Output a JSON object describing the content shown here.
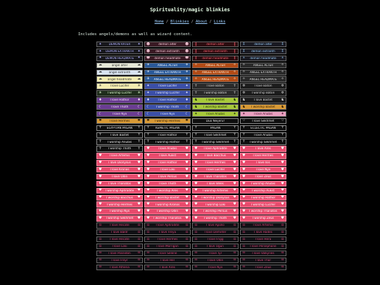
{
  "page": {
    "title": "Spirituality/magic blinkies",
    "intro": "Includes angels/demons as well as wizard content."
  },
  "nav": {
    "links": [
      "Home",
      "Blinkies",
      "About",
      "Links"
    ],
    "separator": "/"
  },
  "blinkies": [
    {
      "text": "DEMON RATER",
      "style": "dk",
      "icon_l": "✦",
      "icon_r": "✦"
    },
    {
      "text": "demon alter",
      "style": "br",
      "icon_l": "☻",
      "icon_r": "☻"
    },
    {
      "text": "demon alter",
      "style": "red",
      "icon_l": "‖",
      "icon_r": "‖"
    },
    {
      "text": "demon alter",
      "style": "dk2",
      "icon_l": "⁑",
      "icon_r": "⁑"
    },
    {
      "text": "DEMON EXTRANTH",
      "style": "dk",
      "icon_l": "✦",
      "icon_r": "✦"
    },
    {
      "text": "demon extranth",
      "style": "br",
      "icon_l": "☻",
      "icon_r": "☻"
    },
    {
      "text": "demon extranth",
      "style": "red",
      "icon_l": "‖",
      "icon_r": "‖"
    },
    {
      "text": "demon extranth",
      "style": "dk2",
      "icon_l": "⁑",
      "icon_r": "⁑"
    },
    {
      "text": "DEMON HEADMATE",
      "style": "dk",
      "icon_l": "✦",
      "icon_r": "✦"
    },
    {
      "text": "demon headmate",
      "style": "br",
      "icon_l": "☻",
      "icon_r": "☻"
    },
    {
      "text": "demon headmate",
      "style": "red",
      "icon_l": "‖",
      "icon_r": "‖"
    },
    {
      "text": "demon headmate",
      "style": "dk2",
      "icon_l": "⁑",
      "icon_r": "⁑"
    },
    {
      "text": "angel alter",
      "style": "pale",
      "icon_l": "☁",
      "icon_r": "☁"
    },
    {
      "text": "ANGEL ALTER",
      "style": "blu",
      "icon_l": "✈",
      "icon_r": "✈"
    },
    {
      "text": "ANGEL ALTER",
      "style": "org",
      "icon_l": "✧",
      "icon_r": "✧"
    },
    {
      "text": "ANGEL ALTER",
      "style": "grb",
      "icon_l": "✧",
      "icon_r": "✧"
    },
    {
      "text": "angel extranth",
      "style": "pal2",
      "icon_l": "☁",
      "icon_r": "☁"
    },
    {
      "text": "ANGEL EXTRANTH",
      "style": "blu",
      "icon_l": "✈",
      "icon_r": "✈"
    },
    {
      "text": "ANGEL EXTRANTH",
      "style": "org",
      "icon_l": "✧",
      "icon_r": "✧"
    },
    {
      "text": "ANGEL EXTRANTH",
      "style": "grb",
      "icon_l": "✧",
      "icon_r": "✧"
    },
    {
      "text": "angel headmate",
      "style": "yel",
      "icon_l": "☁",
      "icon_r": "☁"
    },
    {
      "text": "ANGEL HEADMATE",
      "style": "blu",
      "icon_l": "✈",
      "icon_r": "✈"
    },
    {
      "text": "ANGEL HEADMATE",
      "style": "org",
      "icon_l": "✧",
      "icon_r": "✧"
    },
    {
      "text": "ANGEL HEADMATE",
      "style": "grb",
      "icon_l": "✧",
      "icon_r": "✧"
    },
    {
      "text": "I love Lucifer",
      "style": "yel",
      "icon_l": "☀",
      "icon_r": "☀"
    },
    {
      "text": "I love Lucifer",
      "style": "blv",
      "icon_l": "✦",
      "icon_r": "✦"
    },
    {
      "text": "I love Baton",
      "style": "grb",
      "icon_l": "☥",
      "icon_r": "☥"
    },
    {
      "text": "I love Baton",
      "style": "gry",
      "icon_l": "✲",
      "icon_r": "✲"
    },
    {
      "text": "I worship Lucifer",
      "style": "grn",
      "icon_l": "☀",
      "icon_r": "☀"
    },
    {
      "text": "I worship Lucifer",
      "style": "blv",
      "icon_l": "✦",
      "icon_r": "✦"
    },
    {
      "text": "I worship Baton",
      "style": "grb",
      "icon_l": "☥",
      "icon_r": "☥"
    },
    {
      "text": "I worship Baton",
      "style": "gry",
      "icon_l": "✲",
      "icon_r": "✲"
    },
    {
      "text": "I love Hathor",
      "style": "pur",
      "icon_l": "♦",
      "icon_r": "♦"
    },
    {
      "text": "I love Hathor",
      "style": "blv",
      "icon_l": "♦",
      "icon_r": "♦"
    },
    {
      "text": "I love Bastet",
      "style": "lime",
      "icon_l": "♞",
      "icon_r": "♞"
    },
    {
      "text": "I love Bastet",
      "style": "gry",
      "icon_l": "♞",
      "icon_r": "♞"
    },
    {
      "text": "I love Thoth",
      "style": "pur",
      "icon_l": "☾",
      "icon_r": "☾"
    },
    {
      "text": "I worship Thoth",
      "style": "blv",
      "icon_l": "☾",
      "icon_r": "☾"
    },
    {
      "text": "I worship Bastet",
      "style": "lime",
      "icon_l": "♞",
      "icon_r": "♞"
    },
    {
      "text": "I worship Bastet",
      "style": "amb",
      "icon_l": "♞",
      "icon_r": "♞"
    },
    {
      "text": "I love Nyx",
      "style": "pur",
      "icon_l": "☾",
      "icon_r": "☾"
    },
    {
      "text": "I love Nyx",
      "style": "blv",
      "icon_l": "☾",
      "icon_r": "☾"
    },
    {
      "text": "I love Anubis",
      "style": "lime",
      "icon_l": "✦",
      "icon_r": "✦"
    },
    {
      "text": "I love Anubis",
      "style": "pnk",
      "icon_l": "✦",
      "icon_r": "✦"
    },
    {
      "text": "I love Hermes",
      "style": "amb",
      "icon_l": "✺",
      "icon_r": "✺"
    },
    {
      "text": "I worship Hermes",
      "style": "amb",
      "icon_l": "✺",
      "icon_r": "✺"
    },
    {
      "text": "Duo Neijeru!",
      "style": "blk",
      "icon_l": "",
      "icon_r": ""
    },
    {
      "text": "I love Sekhmet",
      "style": "blk",
      "icon_l": "♢",
      "icon_r": "♢"
    },
    {
      "text": "EGYPTIAN PAGAN",
      "style": "blk",
      "icon_l": "☥",
      "icon_r": "☥"
    },
    {
      "text": "KEMETIC PAGAN",
      "style": "blk",
      "icon_l": "☥",
      "icon_r": "☥"
    },
    {
      "text": "PAGAN",
      "style": "blk",
      "icon_l": "☥",
      "icon_r": "☥"
    },
    {
      "text": "ECLECTIC PAGAN",
      "style": "blk",
      "icon_l": "☥",
      "icon_r": "☥"
    },
    {
      "text": "I love Bastet",
      "style": "blk",
      "icon_l": "☥",
      "icon_r": "☥"
    },
    {
      "text": "I love Hathor",
      "style": "blk",
      "icon_l": "☥",
      "icon_r": "☥"
    },
    {
      "text": "I love Sekhmet",
      "style": "blk",
      "icon_l": "☥",
      "icon_r": "☥"
    },
    {
      "text": "I love Anubis",
      "style": "blk",
      "icon_l": "☥",
      "icon_r": "☥"
    },
    {
      "text": "I worship Anubis",
      "style": "blk",
      "icon_l": "☥",
      "icon_r": "☥"
    },
    {
      "text": "I worship Hathor",
      "style": "blk",
      "icon_l": "☥",
      "icon_r": "☥"
    },
    {
      "text": "I worship Sekhmet",
      "style": "blk",
      "icon_l": "☥",
      "icon_r": "☥"
    },
    {
      "text": "I worship Sekhmet",
      "style": "blk",
      "icon_l": "☥",
      "icon_r": "☥"
    },
    {
      "text": "I worship Thoth",
      "style": "blk",
      "icon_l": "☥",
      "icon_r": "☥"
    },
    {
      "text": "I love Anubis",
      "style": "rose",
      "icon_l": "♥",
      "icon_r": "♥"
    },
    {
      "text": "I love Aphrodite",
      "style": "rose",
      "icon_l": "♥",
      "icon_r": "♥"
    },
    {
      "text": "I love Ares",
      "style": "rose",
      "icon_l": "♥",
      "icon_r": "♥"
    },
    {
      "text": "I love Artemis",
      "style": "rose",
      "icon_l": "♥",
      "icon_r": "♥"
    },
    {
      "text": "I love Aukst",
      "style": "rose",
      "icon_l": "♥",
      "icon_r": "♥"
    },
    {
      "text": "I love Bacchus",
      "style": "rose",
      "icon_l": "♥",
      "icon_r": "♥"
    },
    {
      "text": "I love Hermes",
      "style": "rose",
      "icon_l": "♥",
      "icon_r": "♥"
    },
    {
      "text": "I love Dionysus",
      "style": "rose",
      "icon_l": "♥",
      "icon_r": "♥"
    },
    {
      "text": "I love Hathor",
      "style": "rose",
      "icon_l": "♥",
      "icon_r": "♥"
    },
    {
      "text": "I love Hermes",
      "style": "rose",
      "icon_l": "♥",
      "icon_r": "♥"
    },
    {
      "text": "I love Isis",
      "style": "rose",
      "icon_l": "♥",
      "icon_r": "♥"
    },
    {
      "text": "I love Kronos",
      "style": "rose",
      "icon_l": "♥",
      "icon_r": "♥"
    },
    {
      "text": "I love Loki",
      "style": "rose",
      "icon_l": "♥",
      "icon_r": "♥"
    },
    {
      "text": "I love Lucifer",
      "style": "rose",
      "icon_l": "♥",
      "icon_r": "♥"
    },
    {
      "text": "I love Nyx",
      "style": "rose",
      "icon_l": "♥",
      "icon_r": "♥"
    },
    {
      "text": "I love Odin",
      "style": "rose",
      "icon_l": "♥",
      "icon_r": "♥"
    },
    {
      "text": "I love Persus",
      "style": "rose",
      "icon_l": "♥",
      "icon_r": "♥"
    },
    {
      "text": "I love Thanatos",
      "style": "rose",
      "icon_l": "♥",
      "icon_r": "♥"
    },
    {
      "text": "I love Zeus",
      "style": "rose",
      "icon_l": "♥",
      "icon_r": "♥"
    },
    {
      "text": "I love Thanatos",
      "style": "rose",
      "icon_l": "♥",
      "icon_r": "♥"
    },
    {
      "text": "I love Thoth",
      "style": "rose",
      "icon_l": "♥",
      "icon_r": "♥"
    },
    {
      "text": "I love Veles",
      "style": "rose",
      "icon_l": "♥",
      "icon_r": "♥"
    },
    {
      "text": "I worship Anubis",
      "style": "rose",
      "icon_l": "♥",
      "icon_r": "♥"
    },
    {
      "text": "I worship Aphrodite",
      "style": "rose",
      "icon_l": "♥",
      "icon_r": "♥"
    },
    {
      "text": "I worship Ares",
      "style": "rose",
      "icon_l": "♥",
      "icon_r": "♥"
    },
    {
      "text": "I worship Artemis",
      "style": "rose",
      "icon_l": "♥",
      "icon_r": "♥"
    },
    {
      "text": "I worship Aukst",
      "style": "rose",
      "icon_l": "♥",
      "icon_r": "♥"
    },
    {
      "text": "I worship Bacchus",
      "style": "rose",
      "icon_l": "♥",
      "icon_r": "♥"
    },
    {
      "text": "I worship Bastet",
      "style": "rose",
      "icon_l": "♥",
      "icon_r": "♥"
    },
    {
      "text": "I worship Dionysus",
      "style": "rose",
      "icon_l": "♥",
      "icon_r": "♥"
    },
    {
      "text": "I worship Hathor",
      "style": "rose",
      "icon_l": "♥",
      "icon_r": "♥"
    },
    {
      "text": "I worship Hermes",
      "style": "rose",
      "icon_l": "♥",
      "icon_r": "♥"
    },
    {
      "text": "I worship Kronos",
      "style": "rose",
      "icon_l": "♥",
      "icon_r": "♥"
    },
    {
      "text": "I worship Loki",
      "style": "rose",
      "icon_l": "♥",
      "icon_r": "♥"
    },
    {
      "text": "I worship Lucifer",
      "style": "rose",
      "icon_l": "♥",
      "icon_r": "♥"
    },
    {
      "text": "I worship Nyx",
      "style": "rose",
      "icon_l": "♥",
      "icon_r": "♥"
    },
    {
      "text": "I worship Odin",
      "style": "rose",
      "icon_l": "♥",
      "icon_r": "♥"
    },
    {
      "text": "I worship Persus",
      "style": "rose",
      "icon_l": "♥",
      "icon_r": "♥"
    },
    {
      "text": "I worship Thanatos",
      "style": "rose",
      "icon_l": "♥",
      "icon_r": "♥"
    },
    {
      "text": "I worship Sekhmet",
      "style": "rose",
      "icon_l": "♥",
      "icon_r": "♥"
    },
    {
      "text": "I worship Thanatos",
      "style": "rose",
      "icon_l": "♥",
      "icon_r": "♥"
    },
    {
      "text": "I worship Thoth",
      "style": "rose",
      "icon_l": "♥",
      "icon_r": "♥"
    },
    {
      "text": "I worship Zeus",
      "style": "rose",
      "icon_l": "♥",
      "icon_r": "♥"
    },
    {
      "text": "I love Hecate",
      "style": "nite",
      "icon_l": "☠",
      "icon_r": "☠"
    },
    {
      "text": "I love Aphrodite",
      "style": "nite",
      "icon_l": "☠",
      "icon_r": "☠"
    },
    {
      "text": "I love Apollo",
      "style": "nite",
      "icon_l": "☠",
      "icon_r": "☠"
    },
    {
      "text": "I love Artemis",
      "style": "nite",
      "icon_l": "☠",
      "icon_r": "☠"
    },
    {
      "text": "I love Baldr",
      "style": "nite",
      "icon_l": "☠",
      "icon_r": "☠"
    },
    {
      "text": "I love Freya",
      "style": "nite",
      "icon_l": "☠",
      "icon_r": "☠"
    },
    {
      "text": "I love Demeter",
      "style": "nite",
      "icon_l": "☠",
      "icon_r": "☠"
    },
    {
      "text": "I love Hades",
      "style": "nite",
      "icon_l": "☠",
      "icon_r": "☠"
    },
    {
      "text": "I love Hecate",
      "style": "nite",
      "icon_l": "☠",
      "icon_r": "☠"
    },
    {
      "text": "I love Hermes",
      "style": "nite",
      "icon_l": "☠",
      "icon_r": "☠"
    },
    {
      "text": "I love Frigg",
      "style": "nite",
      "icon_l": "☠",
      "icon_r": "☠"
    },
    {
      "text": "I love Hera",
      "style": "nite",
      "icon_l": "☠",
      "icon_r": "☠"
    },
    {
      "text": "I love Loki",
      "style": "nite",
      "icon_l": "☠",
      "icon_r": "☠"
    },
    {
      "text": "I love Morrigan",
      "style": "nite",
      "icon_l": "☠",
      "icon_r": "☠"
    },
    {
      "text": "I love Ogun",
      "style": "nite",
      "icon_l": "☠",
      "icon_r": "☠"
    },
    {
      "text": "I love Persephone",
      "style": "nite",
      "icon_l": "☠",
      "icon_r": "☠"
    },
    {
      "text": "I love Poseidon",
      "style": "nite",
      "icon_l": "☠",
      "icon_r": "☠"
    },
    {
      "text": "I love Selene",
      "style": "nite",
      "icon_l": "☠",
      "icon_r": "☠"
    },
    {
      "text": "I love Tyr",
      "style": "nite",
      "icon_l": "☠",
      "icon_r": "☠"
    },
    {
      "text": "I love Valkyries",
      "style": "nite",
      "icon_l": "☠",
      "icon_r": "☠"
    },
    {
      "text": "I love Freyr",
      "style": "nite",
      "icon_l": "☠",
      "icon_r": "☠"
    },
    {
      "text": "I love Hel",
      "style": "nite",
      "icon_l": "☠",
      "icon_r": "☠"
    },
    {
      "text": "I love Odin",
      "style": "nite",
      "icon_l": "☠",
      "icon_r": "☠"
    },
    {
      "text": "I love Thor",
      "style": "nite",
      "icon_l": "☠",
      "icon_r": "☠"
    },
    {
      "text": "I love Athena",
      "style": "nite",
      "icon_l": "☠",
      "icon_r": "☠"
    },
    {
      "text": "I love Ares",
      "style": "nite",
      "icon_l": "☠",
      "icon_r": "☠"
    },
    {
      "text": "I love Nyx",
      "style": "nite",
      "icon_l": "☠",
      "icon_r": "☠"
    },
    {
      "text": "I love Zeus",
      "style": "nite",
      "icon_l": "☠",
      "icon_r": "☠"
    }
  ]
}
